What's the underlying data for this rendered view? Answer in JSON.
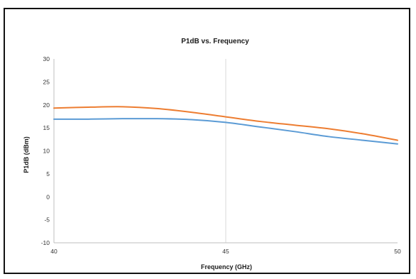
{
  "chart_data": {
    "type": "line",
    "title": "P1dB vs. Frequency",
    "xlabel": "Frequency (GHz)",
    "ylabel": "P1dB (dBm)",
    "xlim": [
      40,
      50
    ],
    "ylim": [
      -10,
      30
    ],
    "x_ticks": [
      40,
      45,
      50
    ],
    "y_ticks": [
      -10,
      -5,
      0,
      5,
      10,
      15,
      20,
      25,
      30
    ],
    "grid": {
      "vertical": true,
      "horizontal": false
    },
    "legend": "none",
    "series": [
      {
        "color": "#ed7d31",
        "x": [
          40,
          41,
          42,
          43,
          44,
          45,
          46,
          47,
          48,
          49,
          50
        ],
        "values": [
          19.3,
          19.5,
          19.6,
          19.2,
          18.4,
          17.4,
          16.4,
          15.6,
          14.8,
          13.7,
          12.3
        ]
      },
      {
        "color": "#5b9bd5",
        "x": [
          40,
          41,
          42,
          43,
          44,
          45,
          46,
          47,
          48,
          49,
          50
        ],
        "values": [
          16.9,
          16.9,
          17.0,
          17.0,
          16.8,
          16.2,
          15.2,
          14.2,
          13.1,
          12.3,
          11.5
        ]
      }
    ]
  }
}
